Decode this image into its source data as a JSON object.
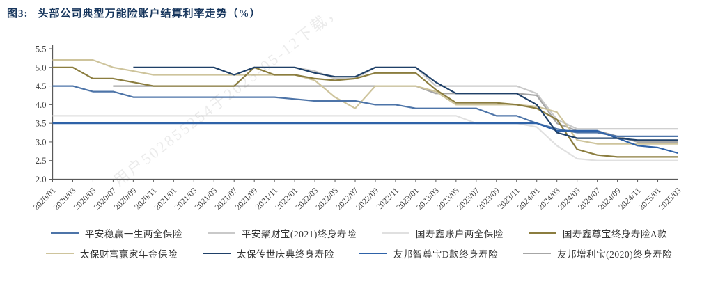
{
  "title": {
    "prefix": "图3:",
    "text": "头部公司典型万能险账户结算利率走势（%）"
  },
  "watermark": "用户502855254于2025-05-12下载，",
  "chart_data": {
    "type": "line",
    "title": "头部公司典型万能险账户结算利率走势（%）",
    "xlabel": "",
    "ylabel": "",
    "ylim": [
      2.0,
      5.5
    ],
    "ytick_step": 0.5,
    "grid": false,
    "legend_position": "bottom",
    "ytick_labels": [
      "5.5",
      "5.0",
      "4.5",
      "4.0",
      "3.5",
      "3.0",
      "2.5",
      "2.0"
    ],
    "categories": [
      "2020/01",
      "2020/03",
      "2020/05",
      "2020/07",
      "2020/09",
      "2020/11",
      "2021/01",
      "2021/03",
      "2021/05",
      "2021/07",
      "2021/09",
      "2021/11",
      "2022/01",
      "2022/03",
      "2022/05",
      "2022/07",
      "2022/09",
      "2022/11",
      "2023/01",
      "2023/03",
      "2023/05",
      "2023/07",
      "2023/09",
      "2023/11",
      "2024/01",
      "2024/03",
      "2024/05",
      "2024/07",
      "2024/09",
      "2024/11",
      "2025/01",
      "2025/03"
    ],
    "series": [
      {
        "name": "平安稳赢一生两全保险",
        "color": "#4d74a8",
        "values": [
          4.5,
          4.5,
          4.35,
          4.35,
          4.2,
          4.2,
          4.2,
          4.2,
          4.2,
          4.2,
          4.2,
          4.2,
          4.15,
          4.1,
          4.1,
          4.1,
          4.0,
          4.0,
          3.9,
          3.9,
          3.9,
          3.9,
          3.7,
          3.7,
          3.5,
          3.35,
          3.25,
          3.25,
          3.15,
          3.15,
          3.15,
          3.15
        ]
      },
      {
        "name": "平安聚财宝(2021)终身寿险",
        "color": "#c9c9c9",
        "values": [
          null,
          null,
          null,
          null,
          null,
          null,
          null,
          null,
          null,
          null,
          5.0,
          5.0,
          5.0,
          4.9,
          4.7,
          4.7,
          5.0,
          5.0,
          5.0,
          4.5,
          4.5,
          4.5,
          4.5,
          4.5,
          4.3,
          3.6,
          3.35,
          3.35,
          3.35,
          3.35,
          3.35,
          3.35
        ]
      },
      {
        "name": "国寿鑫账户两全保险",
        "color": "#e0e0e0",
        "values": [
          3.7,
          3.7,
          3.7,
          3.7,
          3.7,
          3.7,
          3.7,
          3.7,
          3.7,
          3.7,
          3.7,
          3.7,
          3.7,
          3.7,
          3.7,
          3.7,
          3.7,
          3.7,
          3.7,
          3.7,
          3.7,
          3.5,
          3.5,
          3.5,
          3.4,
          2.9,
          2.55,
          2.5,
          2.5,
          2.5,
          2.5,
          2.5
        ]
      },
      {
        "name": "国寿鑫尊宝终身寿险A款",
        "color": "#8b7d3f",
        "values": [
          5.0,
          5.0,
          4.7,
          4.7,
          4.6,
          4.5,
          4.5,
          4.5,
          4.5,
          4.5,
          5.0,
          4.8,
          4.8,
          4.7,
          4.65,
          4.7,
          4.85,
          4.85,
          4.85,
          4.4,
          4.05,
          4.05,
          4.05,
          4.0,
          3.9,
          3.6,
          2.8,
          2.65,
          2.6,
          2.6,
          2.6,
          2.6
        ]
      },
      {
        "name": "太保财富赢家年金保险",
        "color": "#cec49c",
        "values": [
          5.2,
          5.2,
          5.2,
          5.0,
          4.9,
          4.8,
          4.8,
          4.8,
          4.8,
          4.8,
          4.8,
          4.8,
          4.8,
          4.65,
          4.2,
          3.9,
          4.5,
          4.5,
          4.5,
          4.35,
          4.0,
          4.0,
          4.0,
          4.0,
          3.95,
          3.8,
          3.05,
          2.95,
          2.95,
          2.95,
          2.95,
          2.95
        ]
      },
      {
        "name": "太保传世庆典终身寿险",
        "color": "#1f4068",
        "values": [
          null,
          null,
          null,
          null,
          5.0,
          5.0,
          5.0,
          5.0,
          5.0,
          4.8,
          5.0,
          5.0,
          5.0,
          4.85,
          4.75,
          4.75,
          5.0,
          5.0,
          5.0,
          4.6,
          4.3,
          4.3,
          4.3,
          4.3,
          4.0,
          3.25,
          3.1,
          3.1,
          3.1,
          3.05,
          3.05,
          3.05
        ]
      },
      {
        "name": "友邦智尊宝D款终身寿险",
        "color": "#2e62a8",
        "values": [
          3.5,
          3.5,
          3.5,
          3.5,
          3.5,
          3.5,
          3.5,
          3.5,
          3.5,
          3.5,
          3.5,
          3.5,
          3.5,
          3.5,
          3.5,
          3.5,
          3.5,
          3.5,
          3.5,
          3.5,
          3.5,
          3.5,
          3.5,
          3.5,
          3.5,
          3.3,
          3.3,
          3.3,
          3.1,
          2.9,
          2.85,
          2.7
        ]
      },
      {
        "name": "友邦增利宝(2020)终身寿险",
        "color": "#a6a6a6",
        "values": [
          null,
          null,
          null,
          4.5,
          4.5,
          4.5,
          4.5,
          4.5,
          4.5,
          4.5,
          4.5,
          4.5,
          4.5,
          4.5,
          4.5,
          4.5,
          4.5,
          4.5,
          4.5,
          4.3,
          4.3,
          4.3,
          4.3,
          4.3,
          4.25,
          3.5,
          3.3,
          3.3,
          3.15,
          3.0,
          3.0,
          3.0
        ]
      }
    ],
    "legend_rows": [
      [
        0,
        1,
        2,
        3
      ],
      [
        4,
        5,
        6,
        7
      ]
    ],
    "draw_order": [
      2,
      1,
      7,
      4,
      3,
      0,
      6,
      5
    ]
  }
}
